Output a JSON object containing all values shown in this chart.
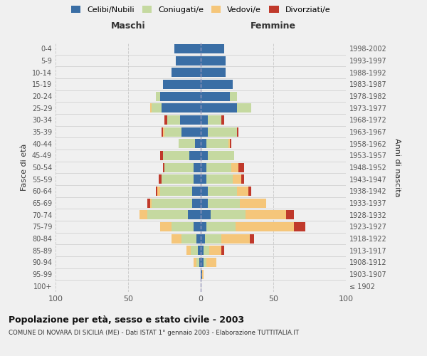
{
  "age_groups": [
    "100+",
    "95-99",
    "90-94",
    "85-89",
    "80-84",
    "75-79",
    "70-74",
    "65-69",
    "60-64",
    "55-59",
    "50-54",
    "45-49",
    "40-44",
    "35-39",
    "30-34",
    "25-29",
    "20-24",
    "15-19",
    "10-14",
    "5-9",
    "0-4"
  ],
  "birth_years": [
    "≤ 1902",
    "1903-1907",
    "1908-1912",
    "1913-1917",
    "1918-1922",
    "1923-1927",
    "1928-1932",
    "1933-1937",
    "1938-1942",
    "1943-1947",
    "1948-1952",
    "1953-1957",
    "1958-1962",
    "1963-1967",
    "1968-1972",
    "1973-1977",
    "1978-1982",
    "1983-1987",
    "1988-1992",
    "1993-1997",
    "1998-2002"
  ],
  "maschi": {
    "celibi": [
      0,
      0,
      1,
      2,
      3,
      5,
      9,
      6,
      6,
      5,
      5,
      8,
      4,
      13,
      14,
      27,
      28,
      26,
      20,
      17,
      18
    ],
    "coniugati": [
      0,
      0,
      2,
      5,
      10,
      15,
      28,
      28,
      22,
      22,
      20,
      18,
      11,
      12,
      9,
      7,
      3,
      0,
      0,
      0,
      0
    ],
    "vedovi": [
      0,
      0,
      2,
      3,
      7,
      8,
      5,
      1,
      2,
      0,
      0,
      0,
      0,
      1,
      0,
      1,
      0,
      0,
      0,
      0,
      0
    ],
    "divorziati": [
      0,
      0,
      0,
      0,
      0,
      0,
      0,
      2,
      1,
      2,
      1,
      2,
      0,
      1,
      2,
      0,
      0,
      0,
      0,
      0,
      0
    ]
  },
  "femmine": {
    "nubili": [
      0,
      1,
      2,
      2,
      3,
      4,
      7,
      5,
      5,
      4,
      4,
      5,
      4,
      5,
      5,
      25,
      20,
      22,
      17,
      17,
      16
    ],
    "coniugate": [
      0,
      0,
      2,
      4,
      11,
      20,
      24,
      22,
      20,
      18,
      17,
      18,
      15,
      20,
      9,
      10,
      5,
      0,
      0,
      0,
      0
    ],
    "vedove": [
      0,
      1,
      7,
      8,
      20,
      40,
      28,
      18,
      8,
      6,
      5,
      0,
      1,
      0,
      0,
      0,
      0,
      0,
      0,
      0,
      0
    ],
    "divorziate": [
      0,
      0,
      0,
      2,
      3,
      8,
      5,
      0,
      2,
      2,
      4,
      0,
      1,
      1,
      2,
      0,
      0,
      0,
      0,
      0,
      0
    ]
  },
  "colors": {
    "celibi": "#3a6ea5",
    "coniugati": "#c5d9a0",
    "vedovi": "#f5c67a",
    "divorziati": "#c0392b"
  },
  "xlim": 100,
  "title": "Popolazione per età, sesso e stato civile - 2003",
  "subtitle": "COMUNE DI NOVARA DI SICILIA (ME) - Dati ISTAT 1° gennaio 2003 - Elaborazione TUTTITALIA.IT",
  "ylabel_left": "Fasce di età",
  "ylabel_right": "Anni di nascita",
  "xlabel_left": "Maschi",
  "xlabel_right": "Femmine",
  "bg_color": "#f0f0f0",
  "grid_color": "#cccccc",
  "legend_labels": [
    "Celibi/Nubili",
    "Coniugati/e",
    "Vedovi/e",
    "Divorziati/e"
  ]
}
